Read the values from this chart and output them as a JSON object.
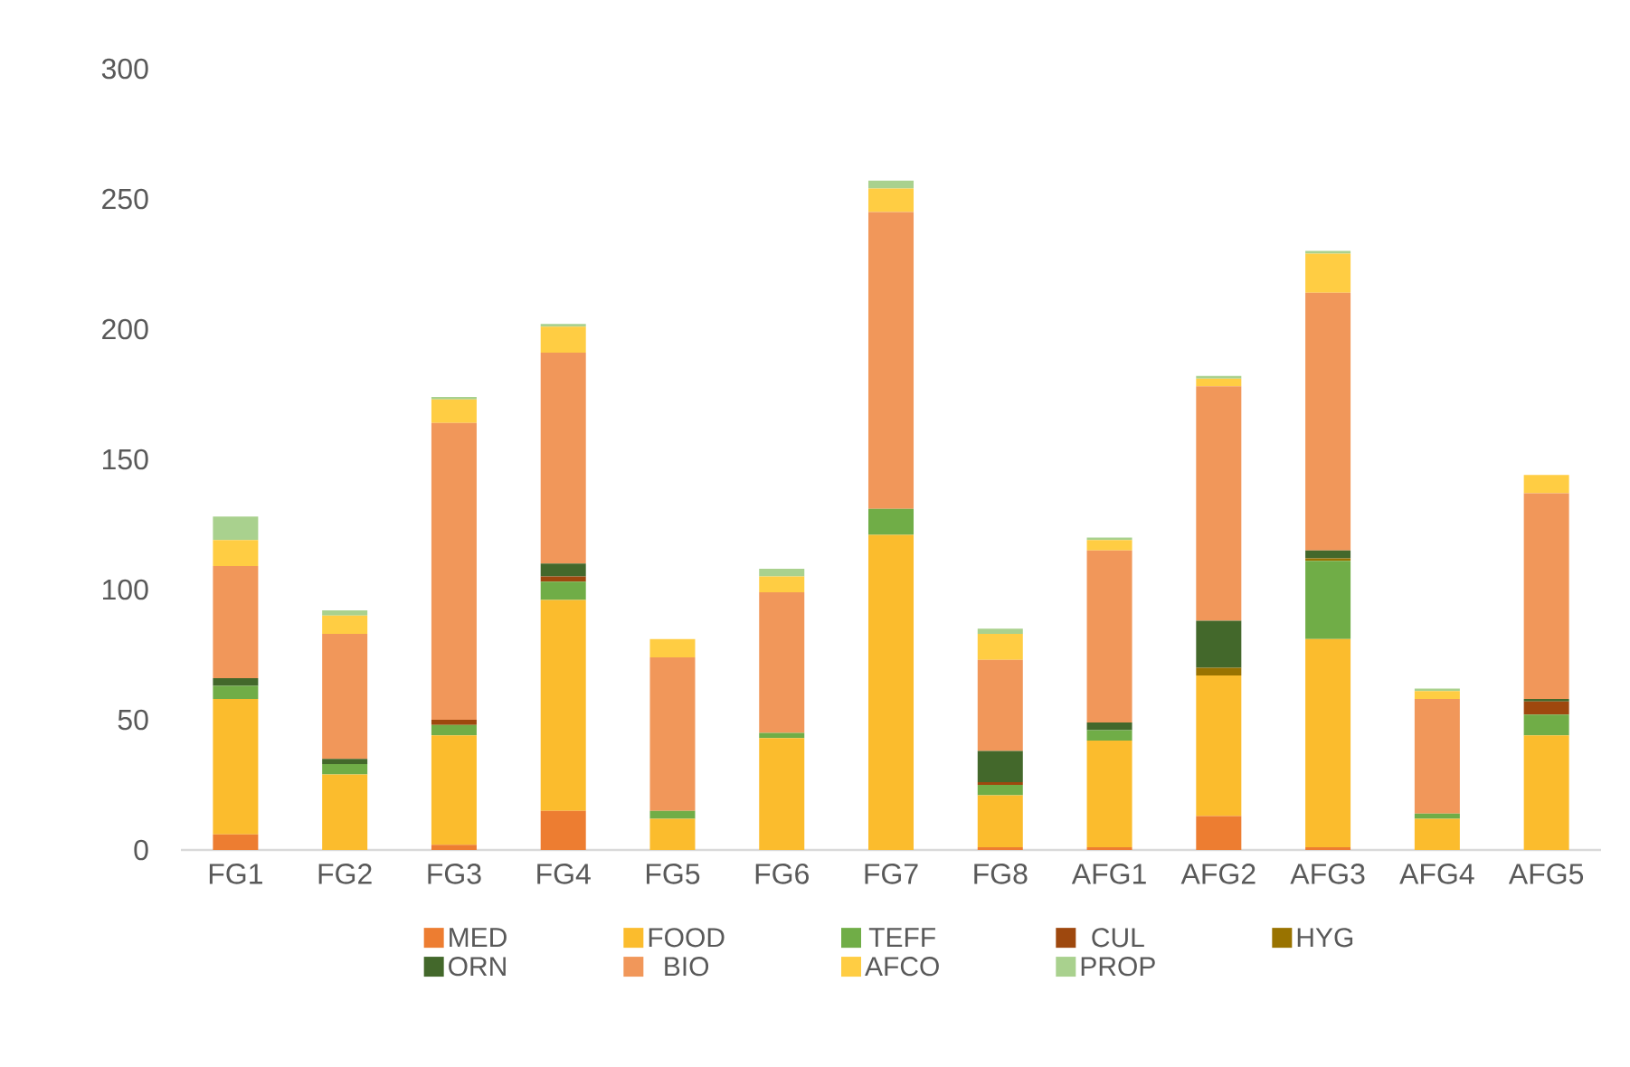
{
  "chart_data": {
    "type": "bar",
    "stacked": true,
    "legend": "bottom",
    "categories": [
      "FG1",
      "FG2",
      "FG3",
      "FG4",
      "FG5",
      "FG6",
      "FG7",
      "FG8",
      "AFG1",
      "AFG2",
      "AFG3",
      "AFG4",
      "AFG5"
    ],
    "ylim": [
      0,
      300
    ],
    "yticks": [
      0,
      50,
      100,
      150,
      200,
      250,
      300
    ],
    "series": [
      {
        "name": "MED",
        "color": "#ed7d31",
        "values": [
          6,
          0,
          2,
          15,
          0,
          0,
          0,
          1,
          1,
          13,
          1,
          0,
          0
        ]
      },
      {
        "name": "FOOD",
        "color": "#fbbc2d",
        "values": [
          52,
          29,
          42,
          81,
          12,
          43,
          121,
          20,
          41,
          54,
          80,
          12,
          44
        ]
      },
      {
        "name": "TEFF",
        "color": "#70ad47",
        "values": [
          5,
          4,
          4,
          7,
          3,
          2,
          10,
          4,
          4,
          0,
          30,
          2,
          8
        ]
      },
      {
        "name": "CUL",
        "color": "#9e480e",
        "values": [
          0,
          0,
          2,
          2,
          0,
          0,
          0,
          1,
          0,
          0,
          0,
          0,
          5
        ]
      },
      {
        "name": "HYG",
        "color": "#997300",
        "values": [
          0,
          0,
          0,
          0,
          0,
          0,
          0,
          0,
          0,
          3,
          1,
          0,
          0
        ]
      },
      {
        "name": "ORN",
        "color": "#43682b",
        "values": [
          3,
          2,
          0,
          5,
          0,
          0,
          0,
          12,
          3,
          18,
          3,
          0,
          1
        ]
      },
      {
        "name": "BIO",
        "color": "#f1975a",
        "values": [
          43,
          48,
          114,
          81,
          59,
          54,
          114,
          35,
          66,
          90,
          99,
          44,
          79
        ]
      },
      {
        "name": "AFCO",
        "color": "#ffcd43",
        "values": [
          10,
          7,
          9,
          10,
          7,
          6,
          9,
          10,
          4,
          3,
          15,
          3,
          7
        ]
      },
      {
        "name": "PROP",
        "color": "#a9d18e",
        "values": [
          9,
          2,
          1,
          1,
          0,
          3,
          3,
          2,
          1,
          1,
          1,
          1,
          0
        ]
      }
    ]
  }
}
